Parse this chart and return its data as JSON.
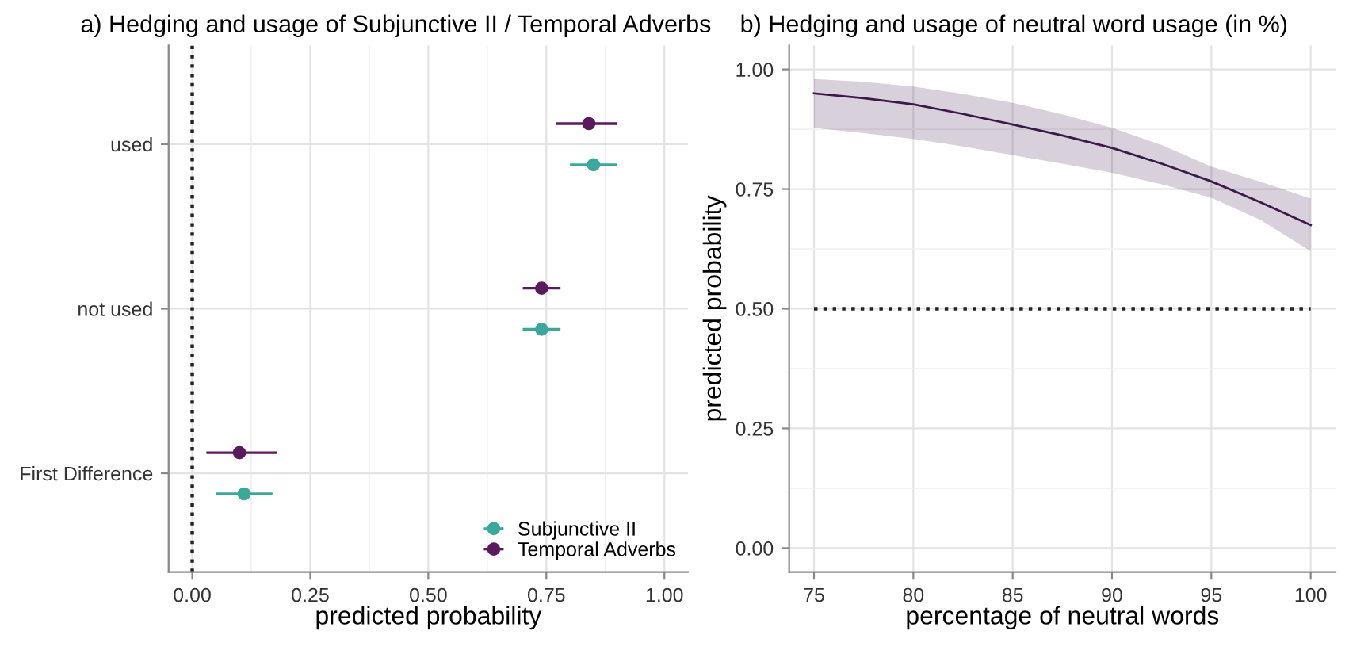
{
  "chart_data": [
    {
      "type": "scatter",
      "orientation": "horizontal",
      "title": "a) Hedging and usage of Subjunctive II / Temporal Adverbs",
      "xlabel": "predicted probability",
      "categories": [
        "used",
        "not used",
        "First Difference"
      ],
      "xlim": [
        -0.05,
        1.05
      ],
      "xticks": [
        {
          "value": 0,
          "label": "0.00"
        },
        {
          "value": 0.25,
          "label": "0.25"
        },
        {
          "value": 0.5,
          "label": "0.50"
        },
        {
          "value": 0.75,
          "label": "0.75"
        },
        {
          "value": 1,
          "label": "1.00"
        }
      ],
      "series": [
        {
          "name": "Subjunctive II",
          "color": "#3aa89a",
          "values": [
            0.85,
            0.74,
            0.11
          ],
          "errors": [
            [
              0.8,
              0.9
            ],
            [
              0.7,
              0.78
            ],
            [
              0.05,
              0.17
            ]
          ]
        },
        {
          "name": "Temporal Adverbs",
          "color": "#5c1a5e",
          "values": [
            0.84,
            0.74,
            0.1
          ],
          "errors": [
            [
              0.77,
              0.9
            ],
            [
              0.7,
              0.78
            ],
            [
              0.03,
              0.18
            ]
          ]
        }
      ],
      "ref_lines": [
        {
          "axis": "x",
          "value": 0,
          "line_style": "dotted",
          "color": "#222222"
        }
      ],
      "marker": "circle",
      "legend": "bottom right",
      "grid": true
    },
    {
      "type": "line",
      "title": "b) Hedging and usage of neutral word usage (in %)",
      "xlabel": "percentage of neutral words",
      "ylabel": "predicted probability",
      "x": [
        75,
        77.5,
        80,
        82.5,
        85,
        87.5,
        90,
        92.5,
        95,
        97.5,
        100
      ],
      "xlim": [
        73.75,
        101.25
      ],
      "xticks": [
        75,
        80,
        85,
        90,
        95,
        100
      ],
      "ylim": [
        -0.05,
        1.05
      ],
      "yticks": [
        {
          "value": 0,
          "label": "0.00"
        },
        {
          "value": 0.25,
          "label": "0.25"
        },
        {
          "value": 0.5,
          "label": "0.50"
        },
        {
          "value": 0.75,
          "label": "0.75"
        },
        {
          "value": 1,
          "label": "1.00"
        }
      ],
      "series": [
        {
          "color": "#3b1a4a",
          "values": [
            0.95,
            0.94,
            0.927,
            0.907,
            0.885,
            0.862,
            0.836,
            0.803,
            0.766,
            0.722,
            0.675
          ],
          "lower": [
            0.878,
            0.867,
            0.855,
            0.839,
            0.821,
            0.803,
            0.784,
            0.76,
            0.732,
            0.685,
            0.62
          ],
          "upper": [
            0.98,
            0.974,
            0.964,
            0.949,
            0.93,
            0.906,
            0.878,
            0.842,
            0.797,
            0.765,
            0.73
          ]
        }
      ],
      "ref_lines": [
        {
          "axis": "y",
          "value": 0.5,
          "line_style": "dotted",
          "color": "#222222"
        }
      ],
      "grid": true
    }
  ]
}
